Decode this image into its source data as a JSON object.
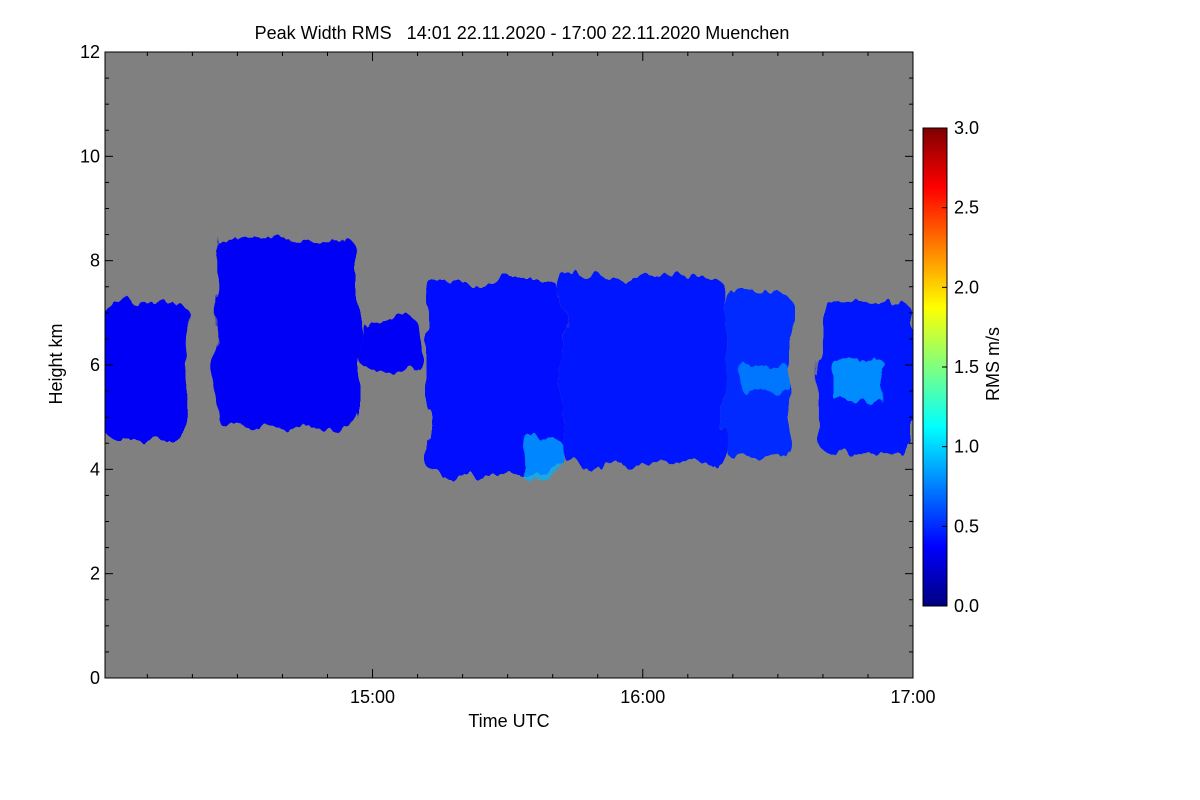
{
  "chart_data": {
    "type": "heatmap",
    "title": "Peak Width RMS   14:01 22.11.2020 - 17:00 22.11.2020 Muenchen",
    "xlabel": "Time UTC",
    "ylabel": "Height km",
    "x_tick_labels": [
      "15:00",
      "16:00",
      "17:00"
    ],
    "x_ticks_hours": [
      15,
      16,
      17
    ],
    "xlim_hours": [
      14.01,
      17.0
    ],
    "y_ticks": [
      0,
      2,
      4,
      6,
      8,
      10,
      12
    ],
    "ylim": [
      0,
      12
    ],
    "background_color": "#808080",
    "colorbar": {
      "label": "RMS m/s",
      "range": [
        0.0,
        3.0
      ],
      "tick_labels": [
        "0.0",
        "0.5",
        "1.0",
        "1.5",
        "2.0",
        "2.5",
        "3.0"
      ],
      "ticks": [
        0.0,
        0.5,
        1.0,
        1.5,
        2.0,
        2.5,
        3.0
      ],
      "colors": [
        "#00007f",
        "#0000ff",
        "#007fff",
        "#00ffff",
        "#7fff7f",
        "#ffff00",
        "#ff7f00",
        "#ff0000",
        "#7f0000"
      ]
    },
    "cloud_regions": [
      {
        "t0": 14.0,
        "t1": 14.32,
        "bottom_km": 4.6,
        "top_km": 7.2,
        "rms": 0.35
      },
      {
        "t0": 14.42,
        "t1": 14.95,
        "bottom_km": 4.8,
        "top_km": 8.4,
        "rms": 0.35
      },
      {
        "t0": 14.95,
        "t1": 15.18,
        "bottom_km": 5.9,
        "top_km": 6.9,
        "rms": 0.35
      },
      {
        "t0": 15.2,
        "t1": 15.7,
        "bottom_km": 3.9,
        "top_km": 7.6,
        "rms": 0.4
      },
      {
        "t0": 15.7,
        "t1": 16.3,
        "bottom_km": 4.1,
        "top_km": 7.7,
        "rms": 0.45
      },
      {
        "t0": 16.3,
        "t1": 16.55,
        "bottom_km": 4.2,
        "top_km": 7.4,
        "rms": 0.5
      },
      {
        "t0": 16.65,
        "t1": 17.0,
        "bottom_km": 4.3,
        "top_km": 7.2,
        "rms": 0.45
      }
    ],
    "enhanced_regions": [
      {
        "t0": 15.55,
        "t1": 15.7,
        "bottom_km": 3.8,
        "top_km": 4.6,
        "rms": 0.9
      },
      {
        "t0": 16.35,
        "t1": 16.55,
        "bottom_km": 5.5,
        "top_km": 6.0,
        "rms": 0.8
      },
      {
        "t0": 16.7,
        "t1": 16.9,
        "bottom_km": 5.3,
        "top_km": 6.1,
        "rms": 0.9
      }
    ]
  }
}
